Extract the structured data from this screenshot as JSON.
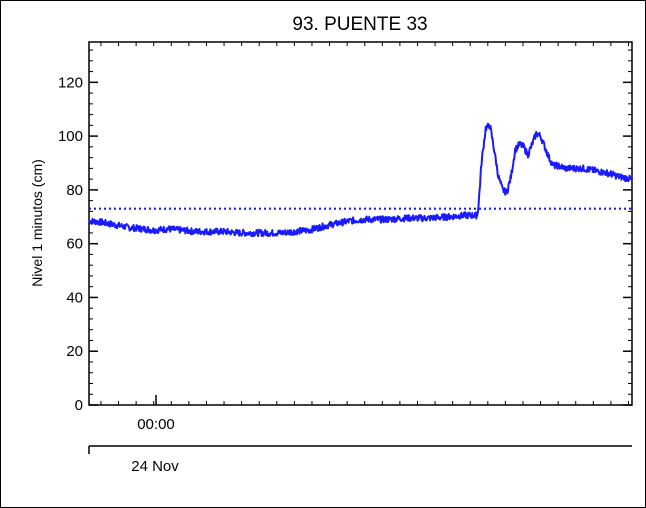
{
  "chart_data": {
    "type": "line",
    "title": "93. PUENTE 33",
    "ylabel": "Nivel 1 minutos (cm)",
    "xlabel": "",
    "ylim": [
      0,
      135
    ],
    "yticks": [
      0,
      20,
      40,
      60,
      80,
      100,
      120
    ],
    "xlim": [
      -0.92,
      6.8
    ],
    "x_unit": "hours relative to 24 Nov 00:00",
    "xtick_label": "00:00",
    "date_label": "24 Nov",
    "grid": false,
    "series": [
      {
        "color": "#1a1aff",
        "style": "solid",
        "x": [
          -0.92,
          -0.75,
          -0.55,
          -0.35,
          -0.15,
          0.0,
          0.2,
          0.4,
          0.6,
          0.8,
          1.0,
          1.2,
          1.4,
          1.6,
          1.8,
          2.0,
          2.2,
          2.5,
          2.8,
          3.0,
          3.3,
          3.6,
          3.9,
          4.2,
          4.4,
          4.6,
          4.62,
          4.66,
          4.72,
          4.78,
          4.84,
          4.9,
          4.96,
          5.02,
          5.08,
          5.14,
          5.2,
          5.26,
          5.32,
          5.38,
          5.44,
          5.5,
          5.56,
          5.62,
          5.68,
          5.74,
          5.8,
          5.86,
          5.92,
          6.0,
          6.1,
          6.2,
          6.3,
          6.4,
          6.5,
          6.6,
          6.7,
          6.8
        ],
        "y": [
          68.5,
          68,
          67,
          66,
          65.5,
          65,
          65.5,
          65,
          64.5,
          64.5,
          64.5,
          64,
          64,
          64,
          64,
          64.5,
          65,
          67,
          68.5,
          69,
          69,
          69.5,
          69.5,
          70,
          70.5,
          70.5,
          75,
          90,
          103,
          104,
          95,
          85,
          80,
          79,
          85,
          95,
          97,
          96,
          93,
          97,
          101,
          100,
          96,
          92,
          89,
          89,
          88.5,
          88,
          88,
          88,
          88,
          87.5,
          87,
          86.5,
          86,
          85,
          84.5,
          84
        ]
      },
      {
        "color": "#1a1aff",
        "style": "dotted",
        "x": [
          -0.92,
          6.8
        ],
        "y": [
          73,
          73
        ]
      }
    ]
  }
}
